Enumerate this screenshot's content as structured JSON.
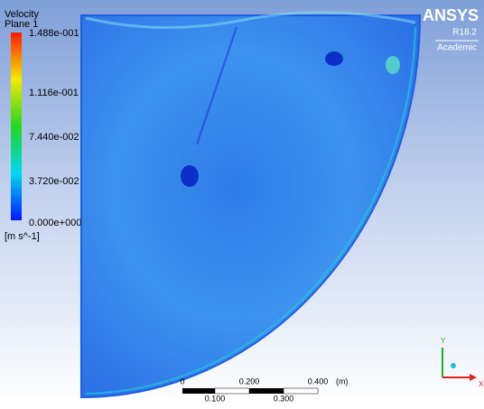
{
  "legend": {
    "title": "Velocity",
    "subtitle": "Plane 1",
    "labels": [
      "1.488e-001",
      "1.116e-001",
      "7.440e-002",
      "3.720e-002",
      "0.000e+000"
    ],
    "unit": "[m s^-1]"
  },
  "logo": {
    "name": "ANSYS",
    "version": "R18.2",
    "edition": "Academic"
  },
  "scale_bar": {
    "top_labels": [
      "0",
      "0.200",
      "0.400",
      "(m)"
    ],
    "bottom_labels": [
      "0.100",
      "0.300"
    ]
  },
  "triad": {
    "y": "Y",
    "x": "X"
  }
}
